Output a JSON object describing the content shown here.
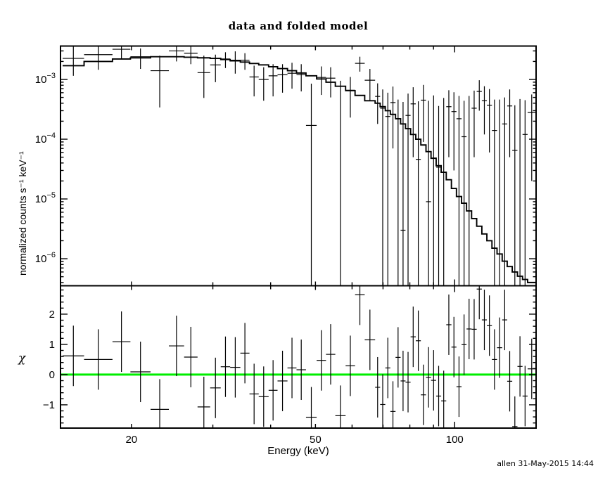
{
  "chart_data": {
    "type": "scatter",
    "title": "data and folded model",
    "xlabel": "Energy (keV)",
    "signature": "allen 31-May-2015 14:44",
    "xscale": "log",
    "xlim": [
      14.05,
      150.0
    ],
    "x_ticks_labeled": [
      20,
      50,
      100
    ],
    "x_tick_labels": [
      "20",
      "50",
      "100"
    ],
    "x_ticks_minor": [
      30,
      40,
      60,
      70,
      80,
      90
    ],
    "axis_color": "#000000",
    "bin_edges_kev": [
      14.2,
      15.8,
      18.2,
      19.9,
      22.0,
      24.1,
      26.0,
      27.8,
      29.6,
      31.2,
      32.7,
      34.4,
      36.0,
      37.7,
      39.6,
      41.4,
      43.5,
      45.5,
      47.7,
      50.3,
      52.7,
      55.2,
      58.1,
      60.9,
      63.9,
      67.3,
      69.0,
      70.8,
      72.6,
      74.5,
      76.4,
      78.3,
      80.3,
      82.4,
      84.5,
      86.7,
      88.9,
      91.2,
      93.5,
      95.9,
      98.4,
      100.9,
      103.5,
      106.1,
      108.8,
      111.6,
      114.5,
      117.4,
      120.4,
      123.5,
      126.7,
      129.9,
      133.2,
      136.7,
      140.2,
      143.8,
      149.8
    ],
    "panels": [
      {
        "name": "spectrum",
        "ylabel": "normalized counts s⁻¹ keV⁻¹",
        "yscale": "log",
        "ylim": [
          3.53e-07,
          0.00362
        ],
        "y_ticks_labeled": [
          0.001,
          0.0001,
          1e-05,
          1e-06
        ],
        "y_tick_labels": [
          "10⁻³",
          "10⁻⁴",
          "10⁻⁵",
          "10⁻⁶"
        ],
        "series": [
          {
            "name": "data",
            "style": "cross-errorbar",
            "color": "#000000"
          },
          {
            "name": "folded model",
            "style": "step-histogram",
            "color": "#000000"
          }
        ],
        "model_rate": [
          0.0017,
          0.002,
          0.0022,
          0.0023,
          0.0024,
          0.0024,
          0.00235,
          0.0023,
          0.00225,
          0.00215,
          0.00205,
          0.00195,
          0.00185,
          0.00175,
          0.00163,
          0.00152,
          0.0014,
          0.00128,
          0.00115,
          0.00102,
          0.0009,
          0.00077,
          0.00065,
          0.00054,
          0.00044,
          0.0004,
          0.00035,
          0.0003,
          0.00026,
          0.00022,
          0.00018,
          0.00015,
          0.00012,
          0.0001,
          8e-05,
          6.2e-05,
          4.8e-05,
          3.6e-05,
          2.8e-05,
          2.1e-05,
          1.5e-05,
          1.1e-05,
          8.5e-06,
          6.3e-06,
          4.7e-06,
          3.5e-06,
          2.6e-06,
          2e-06,
          1.5e-06,
          1.2e-06,
          9.1e-07,
          7.4e-07,
          6e-07,
          5.1e-07,
          4.5e-07,
          4e-07
        ],
        "data_rate": [
          [
            0.00225,
            0.00115,
            0.0036
          ],
          [
            0.0026,
            0.00145,
            0.0039
          ],
          [
            0.0032,
            0.0022,
            0.0043
          ],
          [
            0.0024,
            0.0015,
            0.0033
          ],
          [
            0.0014,
            0.00034,
            0.0025
          ],
          [
            0.003,
            0.002,
            0.004
          ],
          [
            0.00275,
            0.0018,
            0.0037
          ],
          [
            0.0013,
            0.00049,
            0.0025
          ],
          [
            0.00175,
            0.0009,
            0.0026
          ],
          [
            0.0022,
            0.00155,
            0.00285
          ],
          [
            0.0021,
            0.00125,
            0.00295
          ],
          [
            0.0021,
            0.00145,
            0.00275
          ],
          [
            0.0011,
            0.00052,
            0.0017
          ],
          [
            0.001,
            0.00044,
            0.0016
          ],
          [
            0.00115,
            0.00052,
            0.0018
          ],
          [
            0.0012,
            0.0006,
            0.0018
          ],
          [
            0.00127,
            0.0007,
            0.0019
          ],
          [
            0.0012,
            0.00063,
            0.0018
          ],
          [
            0.00017,
            2e-07,
            0.00085
          ],
          [
            0.00108,
            0.00055,
            0.00165
          ],
          [
            0.00105,
            0.0005,
            0.0016
          ],
          [
            1e-07,
            1e-07,
            0.00095
          ],
          [
            0.00066,
            0.00023,
            0.0011
          ],
          [
            0.00186,
            0.00135,
            0.0024
          ],
          [
            0.00097,
            0.00045,
            0.0015
          ],
          [
            0.00052,
            0.00018,
            0.00086
          ],
          [
            0.00033,
            2e-07,
            0.00068
          ],
          [
            0.00024,
            1e-07,
            0.0006
          ],
          [
            0.00041,
            7e-05,
            0.00076
          ],
          [
            1e-07,
            1e-07,
            0.00046
          ],
          [
            3e-06,
            1e-07,
            0.00042
          ],
          [
            0.00025,
            1e-07,
            0.00058
          ],
          [
            0.00039,
            5e-05,
            0.00074
          ],
          [
            4.6e-05,
            1e-07,
            0.00043
          ],
          [
            0.00045,
            9e-05,
            0.00081
          ],
          [
            9e-06,
            1e-07,
            0.00044
          ],
          [
            1e-07,
            1e-07,
            0.00054
          ],
          [
            3.4e-05,
            1e-07,
            0.00036
          ],
          [
            1e-07,
            1e-07,
            0.00049
          ],
          [
            0.00035,
            5e-05,
            0.00066
          ],
          [
            0.00029,
            3e-05,
            0.00061
          ],
          [
            0.00022,
            1e-07,
            0.00053
          ],
          [
            0.00011,
            1e-07,
            0.00044
          ],
          [
            1e-07,
            1e-07,
            0.00053
          ],
          [
            0.00033,
            5e-05,
            0.00065
          ],
          [
            0.00063,
            0.0003,
            0.00097
          ],
          [
            0.00044,
            0.00012,
            0.00077
          ],
          [
            0.00037,
            6e-05,
            0.00069
          ],
          [
            0.00014,
            1e-07,
            0.00046
          ],
          [
            1e-07,
            1e-07,
            0.00046
          ],
          [
            0.00018,
            1e-07,
            0.0005
          ],
          [
            0.00036,
            5e-05,
            0.00068
          ],
          [
            6.5e-05,
            1e-07,
            0.00037
          ],
          [
            1e-07,
            1e-07,
            0.00047
          ],
          [
            0.00012,
            1e-07,
            0.00045
          ],
          [
            0.00028,
            2e-05,
            0.00056
          ]
        ]
      },
      {
        "name": "residuals",
        "ylabel": "χ",
        "yscale": "linear",
        "ylim": [
          -1.77,
          2.94
        ],
        "y_ticks_labeled": [
          -1,
          0,
          1,
          2
        ],
        "y_tick_labels": [
          "−1",
          "0",
          "1",
          "2"
        ],
        "y_minor_step": 0.2,
        "zero_line": {
          "y": 0,
          "color": "#00ee00"
        },
        "chi_sigma": 1.0,
        "chi": [
          0.62,
          0.5,
          1.09,
          0.09,
          -1.15,
          0.95,
          0.58,
          -1.07,
          -0.44,
          0.26,
          0.24,
          0.71,
          -0.64,
          -0.73,
          -0.52,
          -0.21,
          0.22,
          0.16,
          -1.41,
          0.47,
          0.67,
          -1.36,
          0.29,
          2.64,
          1.15,
          -0.42,
          -0.99,
          0.22,
          -1.22,
          0.57,
          -0.21,
          -0.25,
          1.25,
          1.12,
          -0.67,
          -0.09,
          -0.19,
          -0.71,
          -0.87,
          1.65,
          0.91,
          -0.4,
          0.99,
          1.51,
          1.5,
          2.83,
          1.81,
          1.62,
          0.5,
          0.89,
          1.81,
          -0.22,
          -1.72,
          0.27,
          -0.71,
          0.19
        ]
      }
    ]
  }
}
